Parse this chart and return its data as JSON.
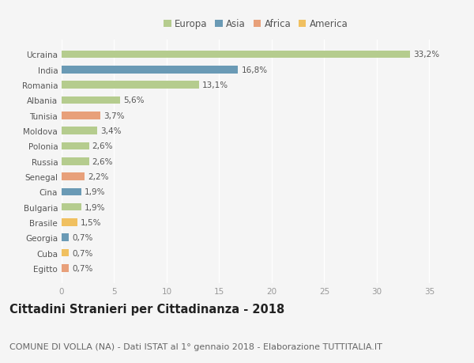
{
  "countries": [
    "Ucraina",
    "India",
    "Romania",
    "Albania",
    "Tunisia",
    "Moldova",
    "Polonia",
    "Russia",
    "Senegal",
    "Cina",
    "Bulgaria",
    "Brasile",
    "Georgia",
    "Cuba",
    "Egitto"
  ],
  "values": [
    33.2,
    16.8,
    13.1,
    5.6,
    3.7,
    3.4,
    2.6,
    2.6,
    2.2,
    1.9,
    1.9,
    1.5,
    0.7,
    0.7,
    0.7
  ],
  "labels": [
    "33,2%",
    "16,8%",
    "13,1%",
    "5,6%",
    "3,7%",
    "3,4%",
    "2,6%",
    "2,6%",
    "2,2%",
    "1,9%",
    "1,9%",
    "1,5%",
    "0,7%",
    "0,7%",
    "0,7%"
  ],
  "continents": [
    "Europa",
    "Asia",
    "Europa",
    "Europa",
    "Africa",
    "Europa",
    "Europa",
    "Europa",
    "Africa",
    "Asia",
    "Europa",
    "America",
    "Asia",
    "America",
    "Africa"
  ],
  "continent_colors": {
    "Europa": "#b5cc8e",
    "Asia": "#6a9ab5",
    "Africa": "#e8a07a",
    "America": "#f0c060"
  },
  "legend_order": [
    "Europa",
    "Asia",
    "Africa",
    "America"
  ],
  "title": "Cittadini Stranieri per Cittadinanza - 2018",
  "subtitle": "COMUNE DI VOLLA (NA) - Dati ISTAT al 1° gennaio 2018 - Elaborazione TUTTITALIA.IT",
  "xlim": [
    0,
    37
  ],
  "xticks": [
    0,
    5,
    10,
    15,
    20,
    25,
    30,
    35
  ],
  "background_color": "#f5f5f5",
  "bar_height": 0.5,
  "title_fontsize": 10.5,
  "subtitle_fontsize": 8,
  "label_fontsize": 7.5,
  "tick_fontsize": 7.5,
  "legend_fontsize": 8.5
}
